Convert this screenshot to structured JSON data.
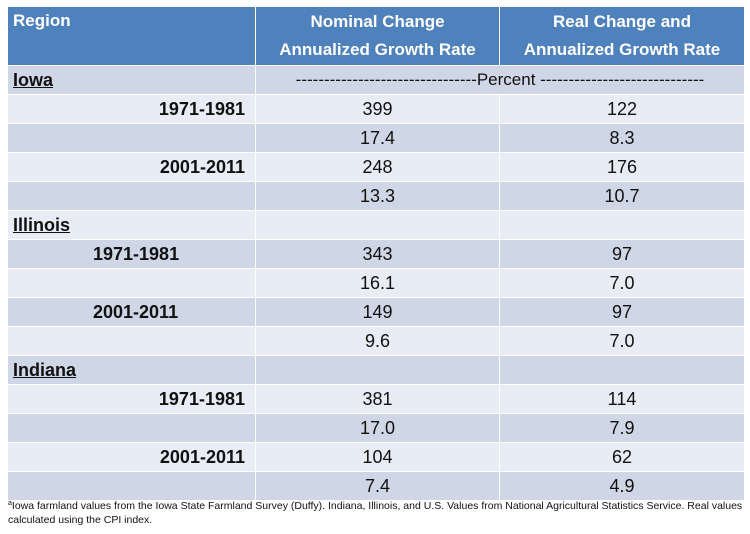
{
  "table": {
    "headers": {
      "region": "Region",
      "nominal_line1": "Nominal Change",
      "nominal_line2": "Annualized Growth Rate",
      "real_line1": "Real Change and",
      "real_line2": "Annualized Growth Rate"
    },
    "percent_label": "--------------------------------Percent  -----------------------------",
    "sections": [
      {
        "name": "Iowa",
        "rows": [
          {
            "period": "1971-1981",
            "nominal": "399",
            "real": "122"
          },
          {
            "period": "",
            "nominal": "17.4",
            "real": "8.3"
          },
          {
            "period": "2001-2011",
            "nominal": "248",
            "real": "176"
          },
          {
            "period": "",
            "nominal": "13.3",
            "real": "10.7"
          }
        ]
      },
      {
        "name": "Illinois",
        "rows": [
          {
            "period": "1971-1981",
            "nominal": "343",
            "real": "97"
          },
          {
            "period": "",
            "nominal": "16.1",
            "real": "7.0"
          },
          {
            "period": "2001-2011",
            "nominal": "149",
            "real": "97"
          },
          {
            "period": "",
            "nominal": "9.6",
            "real": "7.0"
          }
        ]
      },
      {
        "name": "Indiana",
        "rows": [
          {
            "period": "1971-1981",
            "nominal": "381",
            "real": "114"
          },
          {
            "period": "",
            "nominal": "17.0",
            "real": "7.9"
          },
          {
            "period": "2001-2011",
            "nominal": "104",
            "real": "62"
          },
          {
            "period": "",
            "nominal": "7.4",
            "real": "4.9"
          }
        ]
      }
    ]
  },
  "footnote": {
    "marker": "a",
    "text": "Iowa farmland values from the Iowa State Farmland Survey (Duffy).  Indiana, Illinois, and U.S. Values from National Agricultural Statistics Service.  Real values calculated using the CPI index."
  }
}
